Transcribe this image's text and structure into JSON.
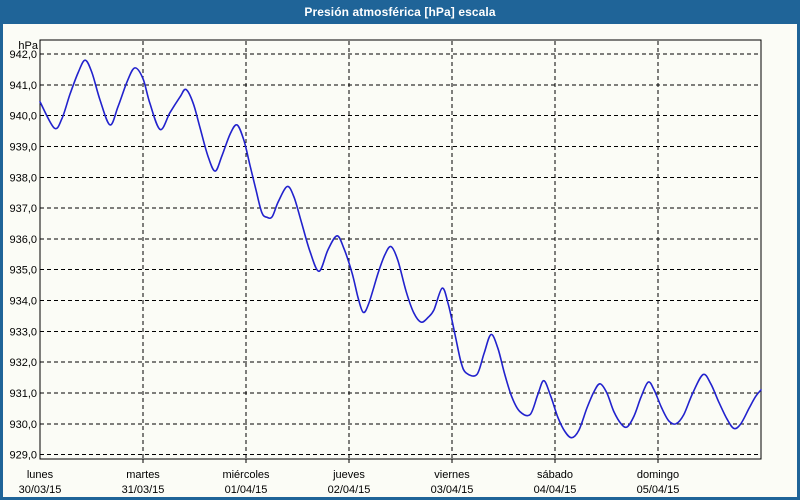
{
  "title": "Presión atmosférica [hPa] escala",
  "colors": {
    "frame_blue": "#1F6498",
    "panel_background": "#FBFCF6",
    "line_blue": "#2222CD",
    "grid_black": "#000000",
    "title_text": "#FFFFFF"
  },
  "chart_data": {
    "type": "line",
    "title": "Presión atmosférica [hPa] escala",
    "xlabel": "",
    "ylabel": "hPa",
    "ylim": [
      929.0,
      942.0
    ],
    "x_range_hours": [
      0,
      168
    ],
    "grid": "dashed black, horizontal every 1 hPa, vertical every 24 h",
    "legend_position": "none",
    "y_ticks": [
      {
        "value": 942,
        "label": "942,0"
      },
      {
        "value": 941,
        "label": "941,0"
      },
      {
        "value": 940,
        "label": "940,0"
      },
      {
        "value": 939,
        "label": "939,0"
      },
      {
        "value": 938,
        "label": "938,0"
      },
      {
        "value": 937,
        "label": "937,0"
      },
      {
        "value": 936,
        "label": "936,0"
      },
      {
        "value": 935,
        "label": "935,0"
      },
      {
        "value": 934,
        "label": "934,0"
      },
      {
        "value": 933,
        "label": "933,0"
      },
      {
        "value": 932,
        "label": "932,0"
      },
      {
        "value": 931,
        "label": "931,0"
      },
      {
        "value": 930,
        "label": "930,0"
      },
      {
        "value": 929,
        "label": "929,0"
      }
    ],
    "x_days": [
      {
        "name": "lunes",
        "date": "30/03/15"
      },
      {
        "name": "martes",
        "date": "31/03/15"
      },
      {
        "name": "miércoles",
        "date": "01/04/15"
      },
      {
        "name": "jueves",
        "date": "02/04/15"
      },
      {
        "name": "viernes",
        "date": "03/04/15"
      },
      {
        "name": "sábado",
        "date": "04/04/15"
      },
      {
        "name": "domingo",
        "date": "05/04/15"
      }
    ],
    "series": [
      {
        "name": "Presión atmosférica",
        "color": "#2222CD",
        "points_hours_hpa": [
          [
            0,
            940.45
          ],
          [
            3.3,
            939.6
          ],
          [
            5.1,
            939.9
          ],
          [
            7,
            940.7
          ],
          [
            8.9,
            941.4
          ],
          [
            10.5,
            941.8
          ],
          [
            12.1,
            941.4
          ],
          [
            14,
            940.5
          ],
          [
            16.3,
            939.7
          ],
          [
            18.2,
            940.3
          ],
          [
            20.3,
            941.1
          ],
          [
            22.1,
            941.55
          ],
          [
            24,
            941.2
          ],
          [
            25.6,
            940.4
          ],
          [
            28,
            939.55
          ],
          [
            30.3,
            940.1
          ],
          [
            32.6,
            940.6
          ],
          [
            34,
            940.85
          ],
          [
            35.7,
            940.4
          ],
          [
            37.3,
            939.6
          ],
          [
            39.1,
            938.7
          ],
          [
            40.8,
            938.2
          ],
          [
            42.4,
            938.7
          ],
          [
            44.3,
            939.4
          ],
          [
            45.9,
            939.7
          ],
          [
            47.5,
            939.2
          ],
          [
            48.9,
            938.4
          ],
          [
            50.3,
            937.6
          ],
          [
            51.7,
            936.85
          ],
          [
            52.9,
            936.7
          ],
          [
            54.1,
            936.72
          ],
          [
            55.5,
            937.2
          ],
          [
            57.6,
            937.7
          ],
          [
            59.2,
            937.35
          ],
          [
            61,
            936.5
          ],
          [
            62.9,
            935.6
          ],
          [
            65,
            934.95
          ],
          [
            67.1,
            935.65
          ],
          [
            69.2,
            936.1
          ],
          [
            70.8,
            935.7
          ],
          [
            72.7,
            934.9
          ],
          [
            74.1,
            934.1
          ],
          [
            75.3,
            933.62
          ],
          [
            76.6,
            933.9
          ],
          [
            78.8,
            934.9
          ],
          [
            80.4,
            935.5
          ],
          [
            81.8,
            935.75
          ],
          [
            83.4,
            935.3
          ],
          [
            85.3,
            934.3
          ],
          [
            87.1,
            933.6
          ],
          [
            88.8,
            933.3
          ],
          [
            90.4,
            933.45
          ],
          [
            91.8,
            933.7
          ],
          [
            93.7,
            934.4
          ],
          [
            95.1,
            933.9
          ],
          [
            96.7,
            932.9
          ],
          [
            98.1,
            932.0
          ],
          [
            99.3,
            931.65
          ],
          [
            101.8,
            931.6
          ],
          [
            103.5,
            932.3
          ],
          [
            105.1,
            932.9
          ],
          [
            106.7,
            932.45
          ],
          [
            108.3,
            931.6
          ],
          [
            110,
            930.85
          ],
          [
            111.8,
            930.4
          ],
          [
            114.2,
            930.3
          ],
          [
            116,
            930.95
          ],
          [
            117.4,
            931.4
          ],
          [
            119,
            930.9
          ],
          [
            120.7,
            930.2
          ],
          [
            122.3,
            929.75
          ],
          [
            123.9,
            929.55
          ],
          [
            125.6,
            929.8
          ],
          [
            127.4,
            930.5
          ],
          [
            129.1,
            931.05
          ],
          [
            130.5,
            931.3
          ],
          [
            132.1,
            931.0
          ],
          [
            133.7,
            930.4
          ],
          [
            135.4,
            930.0
          ],
          [
            136.8,
            929.9
          ],
          [
            138.4,
            930.25
          ],
          [
            140,
            930.85
          ],
          [
            141.7,
            931.35
          ],
          [
            143.1,
            931.1
          ],
          [
            144.9,
            930.5
          ],
          [
            146.5,
            930.1
          ],
          [
            148.2,
            930.0
          ],
          [
            150,
            930.3
          ],
          [
            152.1,
            931.0
          ],
          [
            154.5,
            931.6
          ],
          [
            156.3,
            931.3
          ],
          [
            158.2,
            930.7
          ],
          [
            160.1,
            930.15
          ],
          [
            161.7,
            929.85
          ],
          [
            163.3,
            930.0
          ],
          [
            165.2,
            930.5
          ],
          [
            166.8,
            930.9
          ],
          [
            168,
            931.1
          ]
        ]
      }
    ]
  }
}
